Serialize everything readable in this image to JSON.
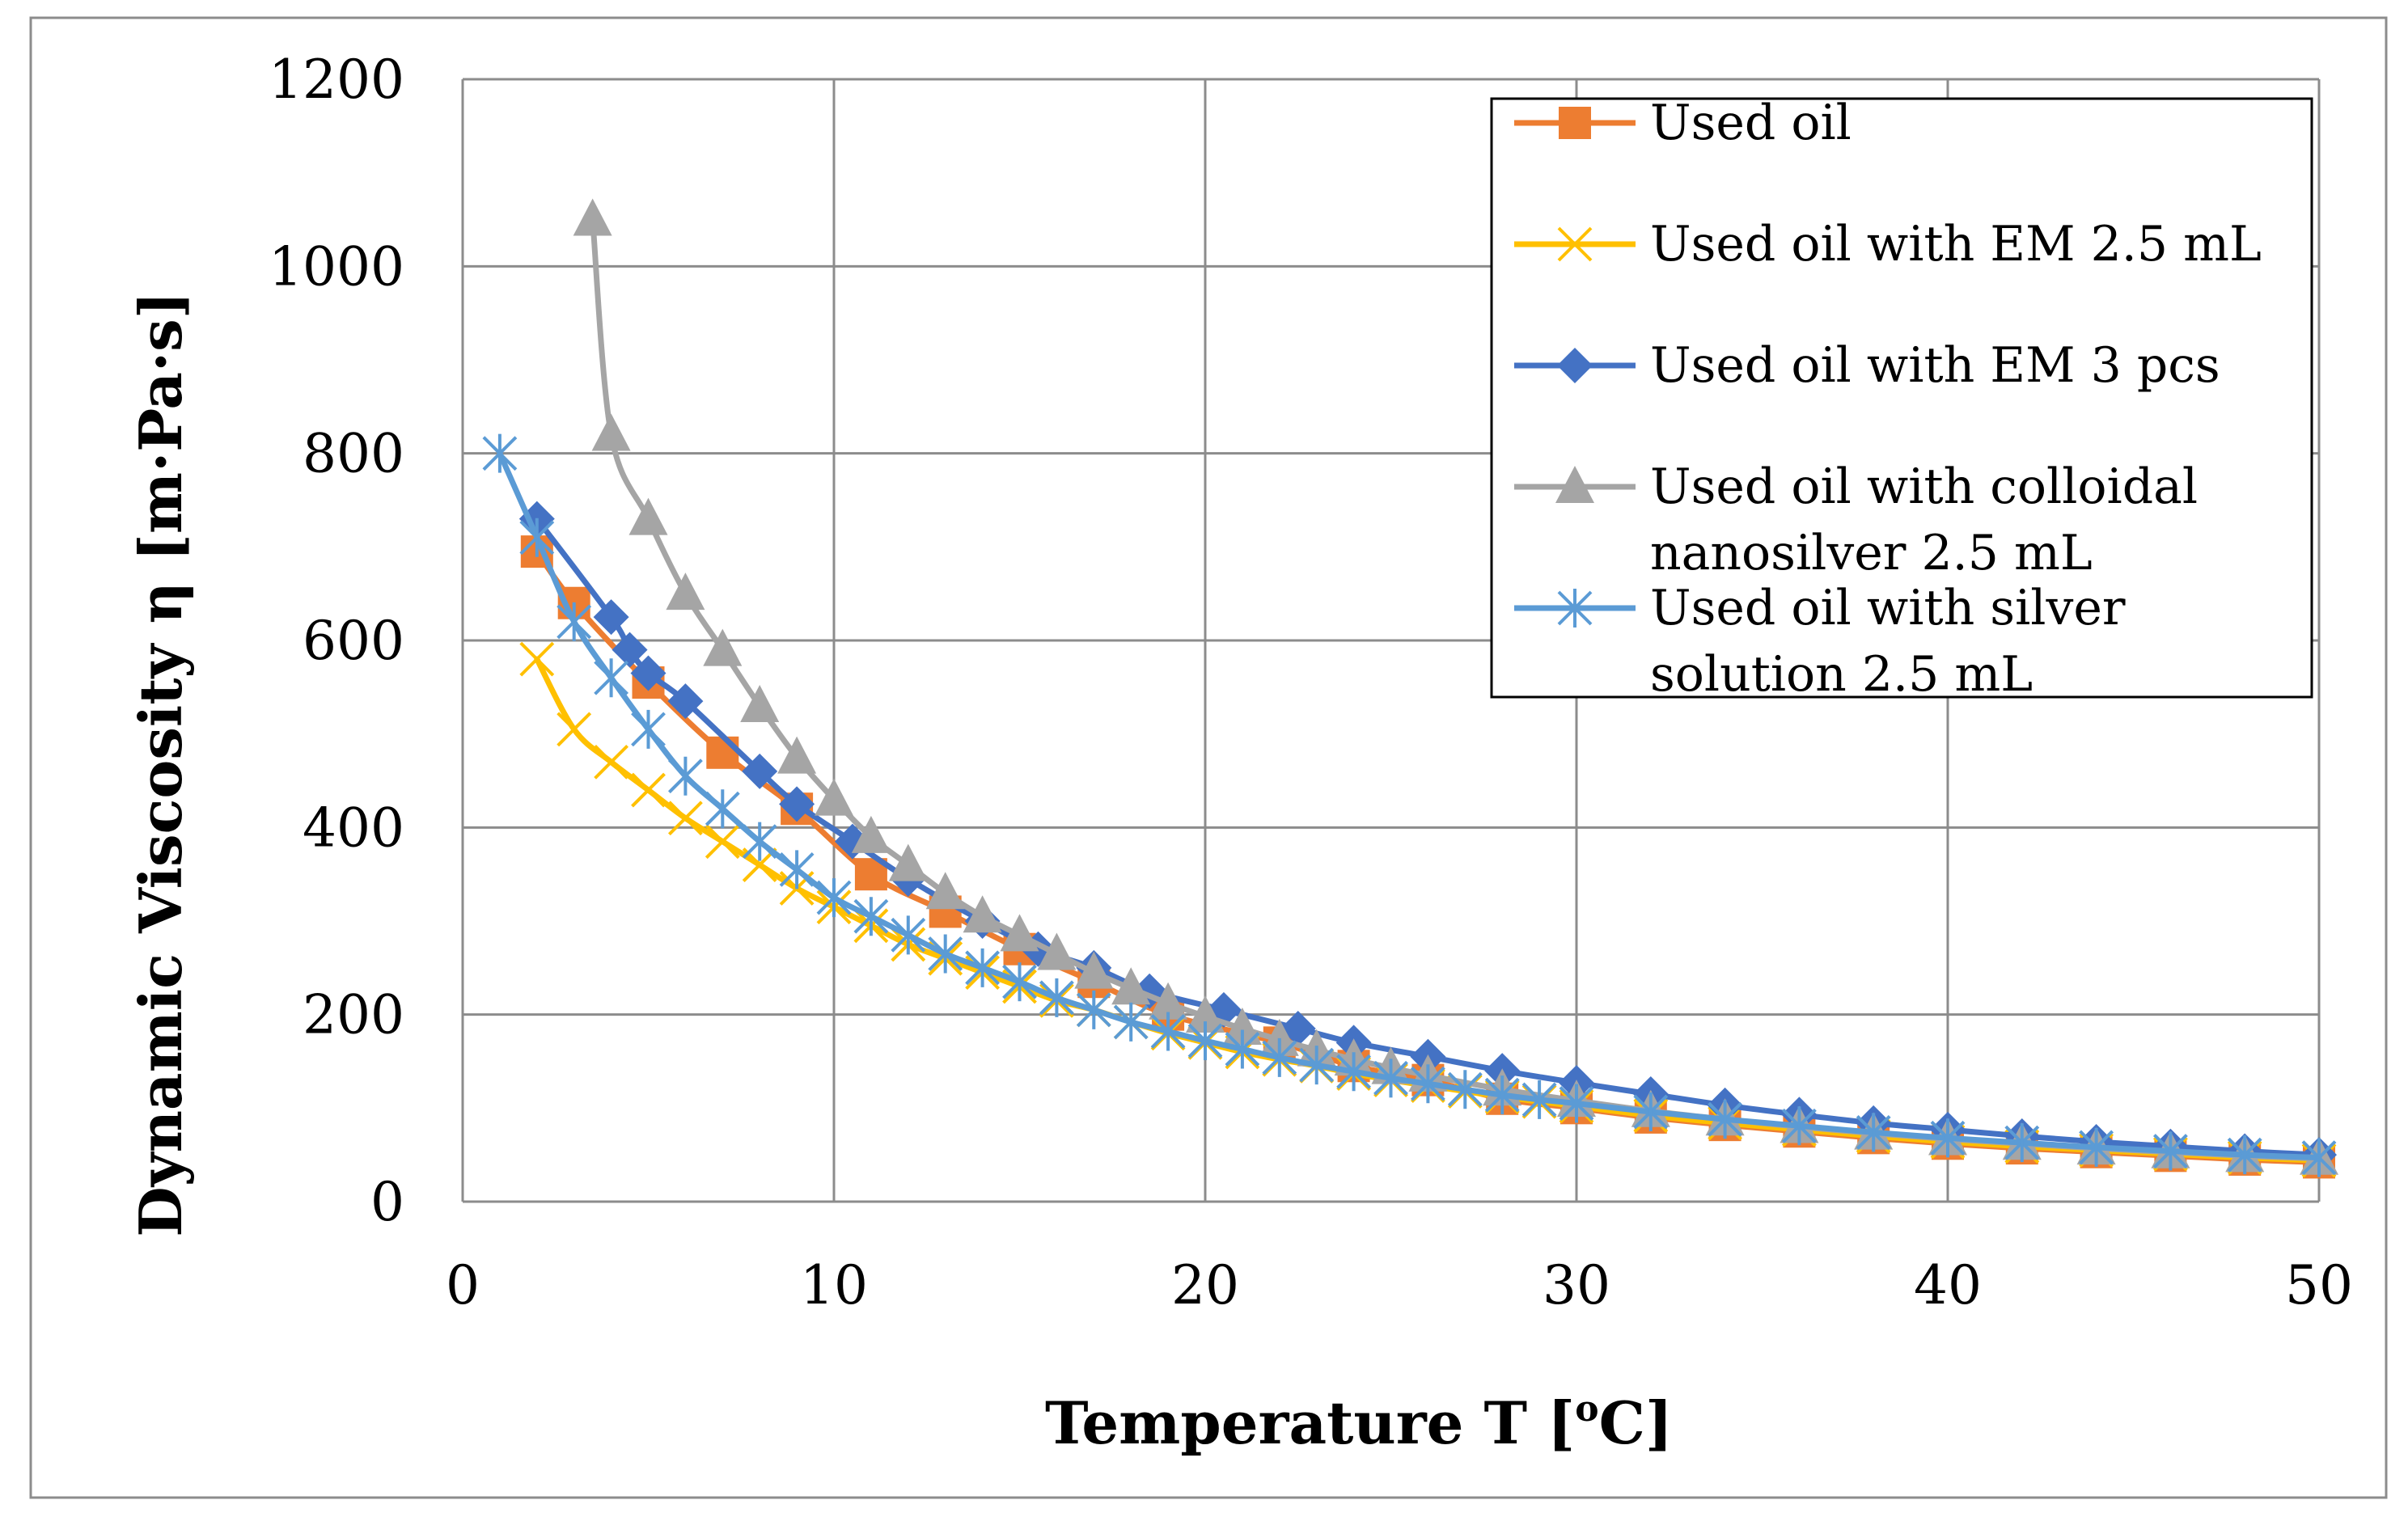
{
  "chart_data": {
    "type": "line",
    "title": "",
    "xlabel": "Temperature T [°C]",
    "xlabel_main": "Temperature T [",
    "xlabel_sup": "o",
    "xlabel_end": "C]",
    "ylabel": "Dynamic Viscosity η [m·Pa·s]",
    "xlim": [
      0,
      50
    ],
    "ylim": [
      0,
      1200
    ],
    "xticks": [
      0,
      10,
      20,
      30,
      40,
      50
    ],
    "yticks": [
      0,
      200,
      400,
      600,
      800,
      1000,
      1200
    ],
    "grid": true,
    "legend_position": "top-right",
    "series": [
      {
        "name": "Used oil",
        "color": "#ED7D31",
        "marker": "square",
        "x": [
          2,
          3,
          5,
          7,
          9,
          11,
          13,
          15,
          17,
          19,
          22,
          24,
          26,
          28,
          30,
          32,
          34,
          36,
          38,
          40,
          42,
          44,
          46,
          48,
          50
        ],
        "y": [
          695,
          640,
          555,
          480,
          420,
          350,
          310,
          270,
          235,
          200,
          170,
          145,
          130,
          110,
          100,
          90,
          82,
          75,
          68,
          62,
          57,
          53,
          49,
          45,
          42
        ]
      },
      {
        "name": "Used oil with EM 2.5 mL",
        "color": "#FFC000",
        "marker": "x",
        "x": [
          2,
          3,
          4,
          5,
          6,
          7,
          8,
          9,
          10,
          11,
          12,
          13,
          14,
          15,
          16,
          17,
          18,
          19,
          20,
          21,
          22,
          23,
          24,
          25,
          26,
          27,
          28,
          29,
          30,
          32,
          34,
          36,
          38,
          40,
          42,
          44,
          46,
          48,
          50
        ],
        "y": [
          580,
          505,
          470,
          440,
          410,
          385,
          360,
          335,
          315,
          295,
          275,
          260,
          245,
          230,
          215,
          205,
          192,
          180,
          170,
          160,
          152,
          145,
          137,
          130,
          124,
          118,
          112,
          107,
          102,
          92,
          84,
          77,
          70,
          64,
          59,
          55,
          51,
          47,
          44
        ]
      },
      {
        "name": "Used oil with EM 3 pcs",
        "color": "#4472C4",
        "marker": "diamond",
        "x": [
          2,
          4,
          4.5,
          5,
          6,
          8,
          9,
          10.5,
          12,
          14,
          15.5,
          17,
          18.5,
          20.5,
          22.5,
          24,
          26,
          28,
          30,
          32,
          34,
          36,
          38,
          40,
          42,
          44,
          46,
          48,
          50
        ],
        "y": [
          730,
          625,
          590,
          565,
          535,
          460,
          425,
          385,
          345,
          300,
          270,
          250,
          225,
          205,
          185,
          170,
          155,
          140,
          127,
          115,
          103,
          93,
          84,
          77,
          70,
          64,
          59,
          54,
          50
        ]
      },
      {
        "name": "Used oil with colloidal nanosilver 2.5 mL",
        "color": "#A5A5A5",
        "marker": "triangle",
        "x": [
          3.5,
          4,
          5,
          6,
          7,
          8,
          9,
          10,
          11,
          12,
          13,
          14,
          15,
          16,
          17,
          18,
          19,
          20,
          21,
          22,
          23,
          24,
          25,
          26,
          28,
          30,
          32,
          34,
          36,
          38,
          40,
          42,
          44,
          46,
          48,
          50
        ],
        "y": [
          1050,
          820,
          730,
          650,
          590,
          530,
          475,
          430,
          390,
          360,
          330,
          305,
          285,
          265,
          245,
          228,
          212,
          198,
          185,
          173,
          162,
          152,
          143,
          135,
          120,
          108,
          97,
          88,
          80,
          73,
          67,
          62,
          57,
          53,
          49,
          46
        ]
      },
      {
        "name": "Used oil with silver solution 2.5 mL",
        "color": "#5B9BD5",
        "marker": "asterisk",
        "x": [
          1,
          2,
          3,
          4,
          5,
          6,
          7,
          8,
          9,
          10,
          11,
          12,
          13,
          14,
          15,
          16,
          17,
          18,
          19,
          20,
          21,
          22,
          23,
          24,
          25,
          26,
          27,
          28,
          29,
          30,
          32,
          34,
          36,
          38,
          40,
          42,
          44,
          46,
          48,
          50
        ],
        "y": [
          800,
          710,
          620,
          560,
          505,
          455,
          420,
          385,
          355,
          325,
          305,
          285,
          265,
          250,
          235,
          218,
          205,
          192,
          182,
          172,
          163,
          154,
          146,
          139,
          132,
          126,
          120,
          114,
          109,
          105,
          96,
          88,
          81,
          74,
          68,
          63,
          58,
          54,
          50,
          47
        ]
      }
    ],
    "legend_lines": [
      [
        "Used oil"
      ],
      [
        "Used oil with EM 2.5 mL"
      ],
      [
        "Used oil with EM 3 pcs"
      ],
      [
        "Used oil with colloidal",
        "nanosilver 2.5 mL"
      ],
      [
        "Used oil with silver",
        "solution 2.5 mL"
      ]
    ]
  }
}
